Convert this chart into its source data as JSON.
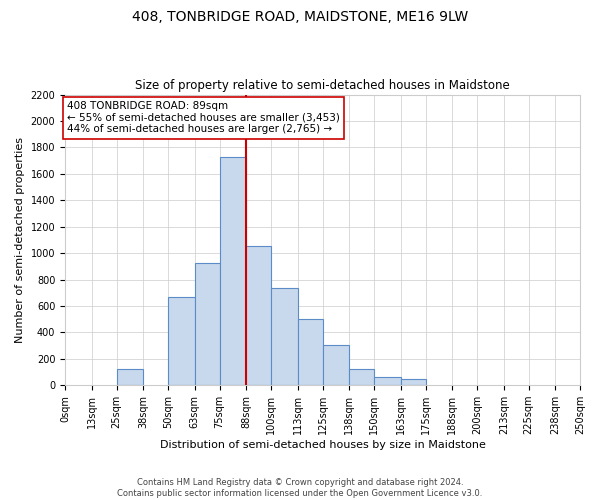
{
  "title": "408, TONBRIDGE ROAD, MAIDSTONE, ME16 9LW",
  "subtitle": "Size of property relative to semi-detached houses in Maidstone",
  "xlabel": "Distribution of semi-detached houses by size in Maidstone",
  "ylabel": "Number of semi-detached properties",
  "bar_left_edges": [
    0,
    13,
    25,
    38,
    50,
    63,
    75,
    88,
    100,
    113,
    125,
    138,
    150,
    163,
    175,
    188,
    200,
    213,
    225,
    238
  ],
  "bar_widths": [
    13,
    12,
    13,
    12,
    13,
    12,
    13,
    12,
    13,
    12,
    13,
    12,
    13,
    12,
    13,
    12,
    13,
    12,
    13,
    12
  ],
  "bar_heights": [
    0,
    0,
    120,
    0,
    665,
    925,
    1730,
    1055,
    735,
    500,
    305,
    120,
    65,
    45,
    0,
    0,
    0,
    0,
    0,
    0
  ],
  "tick_labels": [
    "0sqm",
    "13sqm",
    "25sqm",
    "38sqm",
    "50sqm",
    "63sqm",
    "75sqm",
    "88sqm",
    "100sqm",
    "113sqm",
    "125sqm",
    "138sqm",
    "150sqm",
    "163sqm",
    "175sqm",
    "188sqm",
    "200sqm",
    "213sqm",
    "225sqm",
    "238sqm",
    "250sqm"
  ],
  "tick_positions": [
    0,
    13,
    25,
    38,
    50,
    63,
    75,
    88,
    100,
    113,
    125,
    138,
    150,
    163,
    175,
    188,
    200,
    213,
    225,
    238,
    250
  ],
  "bar_color": "#c9d9ed",
  "bar_edge_color": "#5b8cc8",
  "property_line_x": 88,
  "property_line_color": "#cc0000",
  "ylim": [
    0,
    2200
  ],
  "yticks": [
    0,
    200,
    400,
    600,
    800,
    1000,
    1200,
    1400,
    1600,
    1800,
    2000,
    2200
  ],
  "annotation_title": "408 TONBRIDGE ROAD: 89sqm",
  "annotation_line1": "← 55% of semi-detached houses are smaller (3,453)",
  "annotation_line2": "44% of semi-detached houses are larger (2,765) →",
  "annotation_box_color": "#ffffff",
  "annotation_box_edge": "#cc0000",
  "footer_line1": "Contains HM Land Registry data © Crown copyright and database right 2024.",
  "footer_line2": "Contains public sector information licensed under the Open Government Licence v3.0.",
  "background_color": "#ffffff",
  "grid_color": "#cccccc",
  "title_fontsize": 10,
  "subtitle_fontsize": 8.5,
  "axis_label_fontsize": 8,
  "tick_fontsize": 7,
  "annotation_fontsize": 7.5,
  "footer_fontsize": 6
}
